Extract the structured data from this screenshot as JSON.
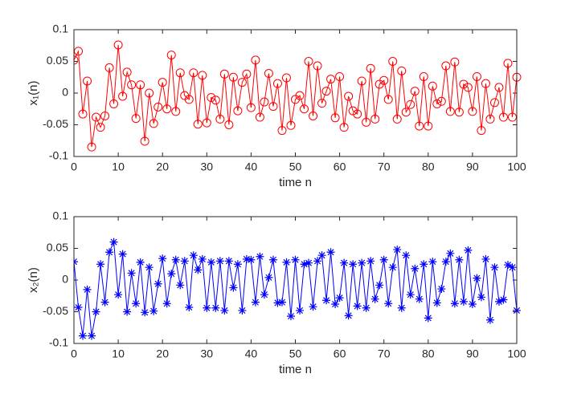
{
  "chart_data": [
    {
      "type": "line",
      "xlabel": "time n",
      "ylabel": "x₁(n)",
      "x": [
        0,
        1,
        2,
        3,
        4,
        5,
        6,
        7,
        8,
        9,
        10,
        11,
        12,
        13,
        14,
        15,
        16,
        17,
        18,
        19,
        20,
        21,
        22,
        23,
        24,
        25,
        26,
        27,
        28,
        29,
        30,
        31,
        32,
        33,
        34,
        35,
        36,
        37,
        38,
        39,
        40,
        41,
        42,
        43,
        44,
        45,
        46,
        47,
        48,
        49,
        50,
        51,
        52,
        53,
        54,
        55,
        56,
        57,
        58,
        59,
        60,
        61,
        62,
        63,
        64,
        65,
        66,
        67,
        68,
        69,
        70,
        71,
        72,
        73,
        74,
        75,
        76,
        77,
        78,
        79,
        80,
        81,
        82,
        83,
        84,
        85,
        86,
        87,
        88,
        89,
        90,
        91,
        92,
        93,
        94,
        95,
        96,
        97,
        98,
        99,
        100
      ],
      "series": [
        {
          "color": "#ff0000",
          "marker": "circle",
          "values": [
            0.052,
            0.066,
            -0.033,
            0.019,
            -0.085,
            -0.038,
            -0.054,
            -0.036,
            0.04,
            -0.017,
            0.076,
            -0.005,
            0.033,
            0.013,
            -0.04,
            0.013,
            -0.076,
            0.0,
            -0.048,
            -0.022,
            0.017,
            -0.025,
            0.06,
            -0.029,
            0.032,
            -0.004,
            -0.01,
            0.032,
            -0.049,
            0.028,
            -0.047,
            -0.007,
            -0.011,
            -0.041,
            0.03,
            -0.05,
            0.025,
            -0.028,
            0.017,
            0.03,
            -0.023,
            0.052,
            -0.038,
            -0.014,
            0.031,
            -0.021,
            0.015,
            -0.059,
            0.024,
            -0.051,
            -0.01,
            -0.004,
            -0.025,
            0.05,
            -0.036,
            0.043,
            -0.016,
            0.003,
            0.022,
            -0.039,
            0.026,
            -0.054,
            -0.005,
            -0.028,
            -0.033,
            0.019,
            -0.046,
            0.039,
            -0.041,
            0.014,
            0.02,
            -0.01,
            0.05,
            -0.041,
            0.035,
            -0.03,
            -0.018,
            0.003,
            -0.052,
            0.026,
            -0.052,
            0.011,
            -0.017,
            -0.013,
            0.043,
            -0.029,
            0.049,
            -0.03,
            0.014,
            0.009,
            -0.029,
            0.026,
            -0.059,
            0.015,
            -0.041,
            -0.015,
            0.009,
            -0.038,
            0.047,
            -0.038,
            0.025
          ]
        }
      ],
      "xlim": [
        0,
        100
      ],
      "xticks": [
        0,
        10,
        20,
        30,
        40,
        50,
        60,
        70,
        80,
        90,
        100
      ],
      "ylim": [
        -0.1,
        0.1
      ],
      "yticks": [
        -0.1,
        -0.05,
        0,
        0.05,
        0.1
      ]
    },
    {
      "type": "line",
      "xlabel": "time n",
      "ylabel": "x₂(n)",
      "x": [
        0,
        1,
        2,
        3,
        4,
        5,
        6,
        7,
        8,
        9,
        10,
        11,
        12,
        13,
        14,
        15,
        16,
        17,
        18,
        19,
        20,
        21,
        22,
        23,
        24,
        25,
        26,
        27,
        28,
        29,
        30,
        31,
        32,
        33,
        34,
        35,
        36,
        37,
        38,
        39,
        40,
        41,
        42,
        43,
        44,
        45,
        46,
        47,
        48,
        49,
        50,
        51,
        52,
        53,
        54,
        55,
        56,
        57,
        58,
        59,
        60,
        61,
        62,
        63,
        64,
        65,
        66,
        67,
        68,
        69,
        70,
        71,
        72,
        73,
        74,
        75,
        76,
        77,
        78,
        79,
        80,
        81,
        82,
        83,
        84,
        85,
        86,
        87,
        88,
        89,
        90,
        91,
        92,
        93,
        94,
        95,
        96,
        97,
        98,
        99,
        100
      ],
      "series": [
        {
          "color": "#0000ff",
          "marker": "star",
          "values": [
            0.029,
            -0.043,
            -0.088,
            -0.015,
            -0.088,
            -0.05,
            0.025,
            -0.035,
            0.044,
            0.06,
            -0.023,
            0.041,
            -0.05,
            0.011,
            -0.037,
            0.028,
            -0.051,
            0.02,
            -0.049,
            -0.006,
            0.034,
            -0.037,
            0.01,
            0.032,
            -0.008,
            0.03,
            -0.043,
            0.039,
            0.016,
            0.033,
            -0.044,
            0.028,
            -0.044,
            0.03,
            -0.048,
            0.03,
            -0.012,
            0.025,
            -0.048,
            0.033,
            0.032,
            -0.035,
            0.037,
            -0.023,
            0.004,
            0.032,
            -0.036,
            -0.035,
            0.028,
            -0.057,
            0.032,
            -0.048,
            0.025,
            0.027,
            -0.042,
            0.03,
            0.039,
            -0.032,
            0.044,
            -0.038,
            -0.028,
            0.027,
            -0.056,
            0.025,
            -0.041,
            0.027,
            -0.044,
            0.03,
            -0.03,
            -0.008,
            0.032,
            -0.037,
            0.02,
            0.048,
            -0.044,
            0.039,
            -0.023,
            0.018,
            -0.03,
            0.025,
            -0.06,
            0.029,
            -0.036,
            -0.014,
            0.029,
            0.042,
            -0.037,
            0.032,
            -0.034,
            0.047,
            -0.038,
            0.003,
            -0.027,
            0.033,
            -0.063,
            0.02,
            -0.034,
            -0.031,
            0.024,
            0.02,
            -0.048
          ]
        }
      ],
      "xlim": [
        0,
        100
      ],
      "xticks": [
        0,
        10,
        20,
        30,
        40,
        50,
        60,
        70,
        80,
        90,
        100
      ],
      "ylim": [
        -0.1,
        0.1
      ],
      "yticks": [
        -0.1,
        -0.05,
        0,
        0.05,
        0.1
      ]
    }
  ]
}
